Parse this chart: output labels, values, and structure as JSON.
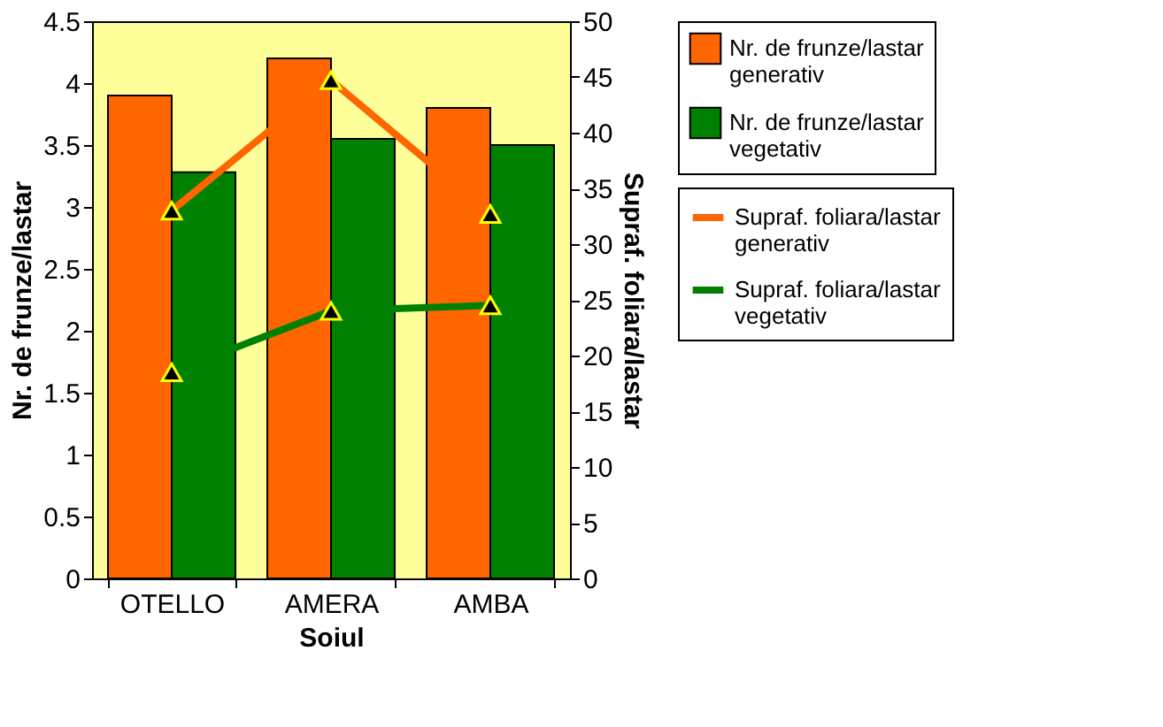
{
  "chart_data": {
    "type": "bar",
    "xlabel": "Soiul",
    "ylabel": "Nr. de frunze/lastar",
    "y2label": "Supraf. foliara/lastar",
    "categories": [
      "OTELLO",
      "AMERA",
      "AMBA"
    ],
    "series": [
      {
        "name": "Nr. de frunze/lastar generativ",
        "color": "#ff6600",
        "values": [
          3.9,
          4.2,
          3.8
        ]
      },
      {
        "name": "Nr. de frunze/lastar vegetativ",
        "color": "#008000",
        "values": [
          3.28,
          3.55,
          3.5
        ]
      },
      {
        "name": "Supraf. foliara/lastar generativ",
        "color": "#ff6600",
        "type": "line",
        "axis": "y2",
        "values": [
          33,
          44.7,
          32.7
        ]
      },
      {
        "name": "Supraf. foliara/lastar vegetativ",
        "color": "#008000",
        "type": "line",
        "axis": "y2",
        "values": [
          18.5,
          24,
          24.5
        ]
      }
    ],
    "ylim": [
      0,
      4.5
    ],
    "yticks": [
      0,
      0.5,
      1,
      1.5,
      2,
      2.5,
      3,
      3.5,
      4,
      4.5
    ],
    "y2lim": [
      0,
      50
    ],
    "y2ticks": [
      0,
      5,
      10,
      15,
      20,
      25,
      30,
      35,
      40,
      45,
      50
    ],
    "marker": "triangle",
    "legend": "right",
    "grid": false
  }
}
